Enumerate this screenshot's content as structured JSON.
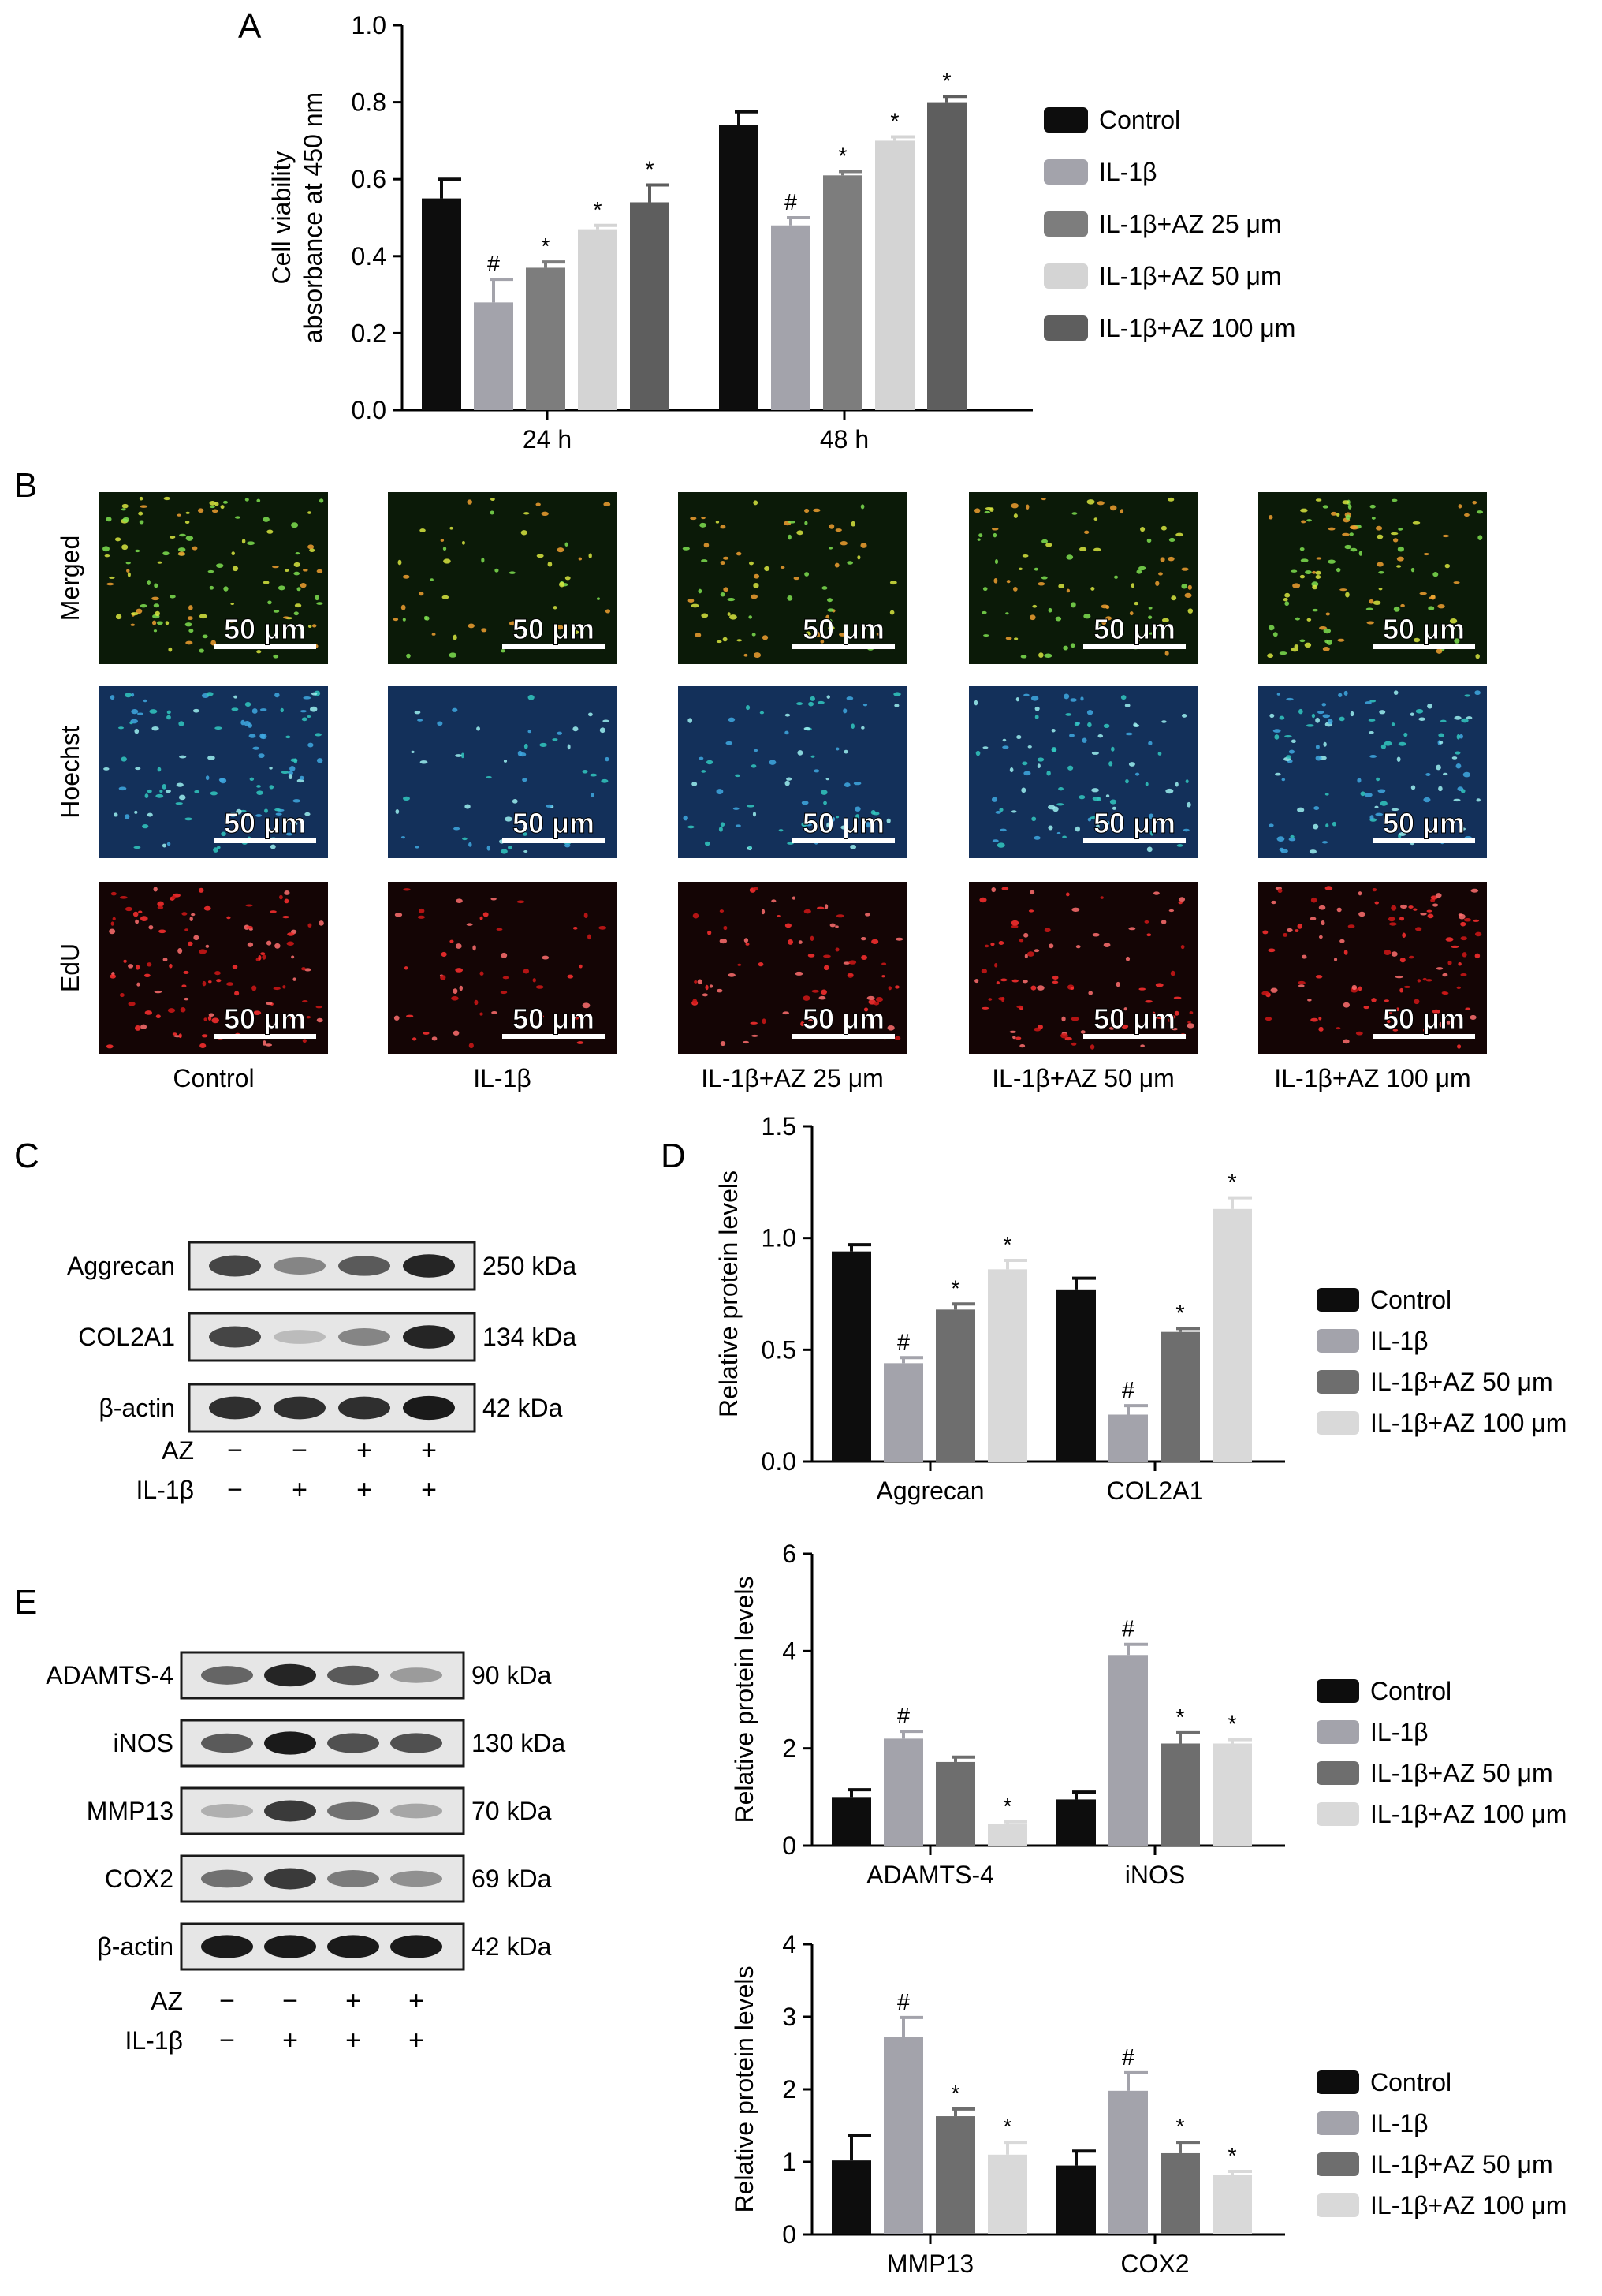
{
  "panels": {
    "A": "A",
    "B": "B",
    "C": "C",
    "D": "D",
    "E": "E"
  },
  "colors": {
    "control": "#0d0d0d",
    "il1b": "#a3a3ab",
    "az25": "#7d7d7d",
    "az50": "#d4d4d4",
    "az100": "#5e5e5e",
    "az50_d": "#6e6e6e",
    "az100_d": "#d9d9d9"
  },
  "chart_data": [
    {
      "id": "A",
      "type": "bar",
      "ylabel_line1": "Cell viability",
      "ylabel_line2": "absorbance at 450 nm",
      "ylim": [
        0,
        1.0
      ],
      "yticks": [
        "0.0",
        "0.2",
        "0.4",
        "0.6",
        "0.8",
        "1.0"
      ],
      "categories": [
        "24 h",
        "48 h"
      ],
      "legend": "right",
      "series": [
        {
          "name": "Control",
          "values": [
            0.55,
            0.74
          ],
          "err": [
            0.05,
            0.035
          ],
          "marks": [
            "",
            ""
          ]
        },
        {
          "name": "IL-1β",
          "values": [
            0.28,
            0.48
          ],
          "err": [
            0.06,
            0.02
          ],
          "marks": [
            "#",
            "#"
          ]
        },
        {
          "name": "IL-1β+AZ 25 μm",
          "values": [
            0.37,
            0.61
          ],
          "err": [
            0.015,
            0.01
          ],
          "marks": [
            "*",
            "*"
          ]
        },
        {
          "name": "IL-1β+AZ 50 μm",
          "values": [
            0.47,
            0.7
          ],
          "err": [
            0.01,
            0.01
          ],
          "marks": [
            "*",
            "*"
          ]
        },
        {
          "name": "IL-1β+AZ 100 μm",
          "values": [
            0.54,
            0.8
          ],
          "err": [
            0.045,
            0.015
          ],
          "marks": [
            "*",
            "*"
          ]
        }
      ]
    },
    {
      "id": "D1",
      "type": "bar",
      "ylabel": "Relative protein levels",
      "ylim": [
        0,
        1.5
      ],
      "yticks": [
        "0.0",
        "0.5",
        "1.0",
        "1.5"
      ],
      "categories": [
        "Aggrecan",
        "COL2A1"
      ],
      "legend": "right",
      "series": [
        {
          "name": "Control",
          "values": [
            0.94,
            0.77
          ],
          "err": [
            0.03,
            0.05
          ],
          "marks": [
            "",
            ""
          ]
        },
        {
          "name": "IL-1β",
          "values": [
            0.44,
            0.21
          ],
          "err": [
            0.025,
            0.04
          ],
          "marks": [
            "#",
            "#"
          ]
        },
        {
          "name": "IL-1β+AZ 50 μm",
          "values": [
            0.68,
            0.58
          ],
          "err": [
            0.025,
            0.015
          ],
          "marks": [
            "*",
            "*"
          ]
        },
        {
          "name": "IL-1β+AZ 100 μm",
          "values": [
            0.86,
            1.13
          ],
          "err": [
            0.04,
            0.05
          ],
          "marks": [
            "*",
            "*"
          ]
        }
      ]
    },
    {
      "id": "D2",
      "type": "bar",
      "ylabel": "Relative protein levels",
      "ylim": [
        0,
        6
      ],
      "yticks": [
        "0",
        "2",
        "4",
        "6"
      ],
      "categories": [
        "ADAMTS-4",
        "iNOS"
      ],
      "legend": "right",
      "series": [
        {
          "name": "Control",
          "values": [
            1.0,
            0.95
          ],
          "err": [
            0.15,
            0.15
          ],
          "marks": [
            "",
            ""
          ]
        },
        {
          "name": "IL-1β",
          "values": [
            2.2,
            3.92
          ],
          "err": [
            0.15,
            0.22
          ],
          "marks": [
            "#",
            "#"
          ]
        },
        {
          "name": "IL-1β+AZ 50 μm",
          "values": [
            1.72,
            2.1
          ],
          "err": [
            0.1,
            0.22
          ],
          "marks": [
            "",
            "*"
          ]
        },
        {
          "name": "IL-1β+AZ 100 μm",
          "values": [
            0.45,
            2.1
          ],
          "err": [
            0.04,
            0.08
          ],
          "marks": [
            "*",
            "*"
          ]
        }
      ]
    },
    {
      "id": "D3",
      "type": "bar",
      "ylabel": "Relative protein levels",
      "ylim": [
        0,
        4
      ],
      "yticks": [
        "0",
        "1",
        "2",
        "3",
        "4"
      ],
      "categories": [
        "MMP13",
        "COX2"
      ],
      "legend": "right",
      "series": [
        {
          "name": "Control",
          "values": [
            1.02,
            0.95
          ],
          "err": [
            0.35,
            0.2
          ],
          "marks": [
            "",
            ""
          ]
        },
        {
          "name": "IL-1β",
          "values": [
            2.72,
            1.98
          ],
          "err": [
            0.27,
            0.25
          ],
          "marks": [
            "#",
            "#"
          ]
        },
        {
          "name": "IL-1β+AZ 50 μm",
          "values": [
            1.63,
            1.12
          ],
          "err": [
            0.1,
            0.15
          ],
          "marks": [
            "*",
            "*"
          ]
        },
        {
          "name": "IL-1β+AZ 100 μm",
          "values": [
            1.1,
            0.82
          ],
          "err": [
            0.17,
            0.05
          ],
          "marks": [
            "*",
            "*"
          ]
        }
      ]
    }
  ],
  "microscopy": {
    "rows": [
      "Merged",
      "Hoechst",
      "EdU"
    ],
    "columns": [
      "Control",
      "IL-1β",
      "IL-1β+AZ 25 μm",
      "IL-1β+AZ 50 μm",
      "IL-1β+AZ 100 μm"
    ],
    "scale_bar": "50 μm",
    "densities": [
      1.0,
      0.45,
      0.65,
      0.8,
      0.95
    ]
  },
  "blots": {
    "C": {
      "bands": [
        {
          "label": "Aggrecan",
          "size": "250 kDa",
          "intensity": [
            0.75,
            0.45,
            0.65,
            0.9
          ]
        },
        {
          "label": "COL2A1",
          "size": "134 kDa",
          "intensity": [
            0.75,
            0.2,
            0.45,
            0.9
          ]
        },
        {
          "label": "β-actin",
          "size": "42 kDa",
          "intensity": [
            0.85,
            0.85,
            0.85,
            0.95
          ]
        }
      ],
      "conditions": [
        {
          "label": "AZ",
          "signs": [
            "−",
            "−",
            "+",
            "+"
          ]
        },
        {
          "label": "IL-1β",
          "signs": [
            "−",
            "+",
            "+",
            "+"
          ]
        }
      ]
    },
    "E": {
      "bands": [
        {
          "label": "ADAMTS-4",
          "size": "90 kDa",
          "intensity": [
            0.6,
            0.9,
            0.65,
            0.35
          ]
        },
        {
          "label": "iNOS",
          "size": "130 kDa",
          "intensity": [
            0.65,
            0.95,
            0.7,
            0.7
          ]
        },
        {
          "label": "MMP13",
          "size": "70 kDa",
          "intensity": [
            0.25,
            0.8,
            0.55,
            0.3
          ]
        },
        {
          "label": "COX2",
          "size": "69 kDa",
          "intensity": [
            0.55,
            0.8,
            0.5,
            0.4
          ]
        },
        {
          "label": "β-actin",
          "size": "42 kDa",
          "intensity": [
            0.95,
            0.95,
            0.95,
            0.95
          ]
        }
      ],
      "conditions": [
        {
          "label": "AZ",
          "signs": [
            "−",
            "−",
            "+",
            "+"
          ]
        },
        {
          "label": "IL-1β",
          "signs": [
            "−",
            "+",
            "+",
            "+"
          ]
        }
      ]
    }
  }
}
